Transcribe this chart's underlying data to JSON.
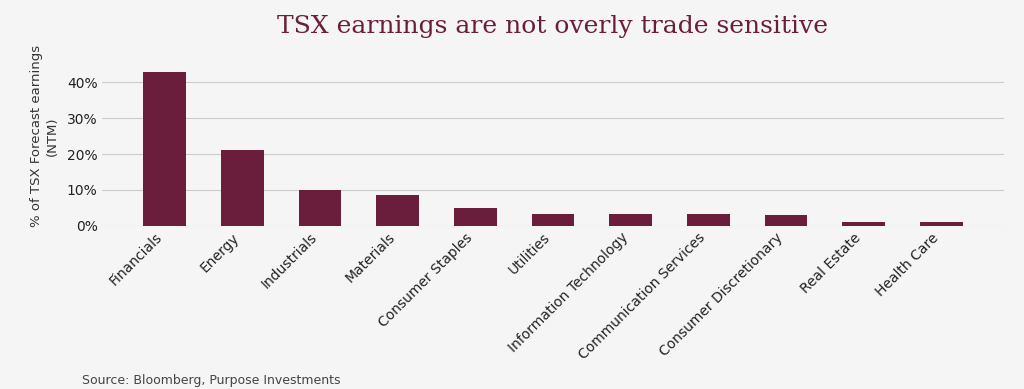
{
  "title": "TSX earnings are not overly trade sensitive",
  "ylabel": "% of TSX Forecast earnings\n(NTM)",
  "source": "Source: Bloomberg, Purpose Investments",
  "categories": [
    "Financials",
    "Energy",
    "Industrials",
    "Materials",
    "Consumer Staples",
    "Utilities",
    "Information Technology",
    "Communication Services",
    "Consumer Discretionary",
    "Real Estate",
    "Health Care"
  ],
  "values": [
    43,
    21,
    10,
    8.5,
    5,
    3.2,
    3.2,
    3.2,
    3.0,
    1.0,
    1.0
  ],
  "bar_color": "#6b1e3c",
  "background_color": "#f5f5f5",
  "title_color": "#6b1e3c",
  "ylabel_color": "#333333",
  "grid_color": "#cccccc",
  "ylim": [
    0,
    50
  ],
  "yticks": [
    0,
    10,
    20,
    30,
    40
  ],
  "ytick_labels": [
    "0%",
    "10%",
    "20%",
    "30%",
    "40%"
  ],
  "title_fontsize": 18,
  "ylabel_fontsize": 9.5,
  "tick_fontsize": 10,
  "source_fontsize": 9
}
